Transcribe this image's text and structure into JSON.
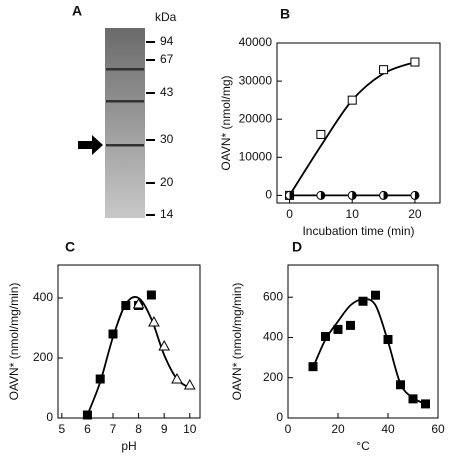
{
  "chart_data": [
    {
      "type": "gel",
      "label": "A",
      "unit": "kDa",
      "markers": [
        94,
        67,
        43,
        30,
        20,
        14
      ]
    },
    {
      "type": "line",
      "label": "B",
      "xlabel": "Incubation time (min)",
      "ylabel": "OAVN* (nmol/mg)",
      "xlim": [
        -2,
        24
      ],
      "xticks": [
        0,
        10,
        20
      ],
      "ylim": [
        -2000,
        40000
      ],
      "yticks": [
        0,
        10000,
        20000,
        30000,
        40000
      ],
      "series": [
        {
          "color": "#000",
          "marker": "none",
          "line": true,
          "x": [
            0,
            5,
            10,
            15,
            20
          ],
          "values": [
            0,
            13000,
            25000,
            32000,
            35000
          ]
        },
        {
          "color": "#000",
          "marker": "square",
          "line": false,
          "x": [
            0,
            5,
            10,
            15,
            20
          ],
          "values": [
            0,
            16000,
            25000,
            33000,
            35000
          ]
        },
        {
          "color": "#000",
          "marker": "circle-half",
          "line": true,
          "x": [
            0,
            5,
            10,
            15,
            20
          ],
          "values": [
            0,
            0,
            0,
            0,
            0
          ]
        }
      ]
    },
    {
      "type": "line",
      "label": "C",
      "xlabel": "pH",
      "ylabel": "OAVN* (nmol/mg/min)",
      "xlim": [
        4.85,
        10.4
      ],
      "xticks": [
        5,
        6,
        7,
        8,
        9,
        10
      ],
      "ylim": [
        0,
        510
      ],
      "yticks": [
        0,
        200,
        400
      ],
      "series": [
        {
          "color": "#000",
          "marker": "none",
          "line": true,
          "x": [
            6,
            6.5,
            7,
            7.5,
            8,
            8.5,
            9,
            9.5,
            10
          ],
          "values": [
            10,
            120,
            270,
            380,
            400,
            330,
            210,
            130,
            100
          ]
        },
        {
          "color": "#000",
          "marker": "square",
          "line": false,
          "x": [
            6,
            6.5,
            7,
            7.5,
            8,
            8.5
          ],
          "values": [
            10,
            130,
            280,
            375,
            375,
            410
          ]
        },
        {
          "color": "#000",
          "marker": "triangle",
          "line": false,
          "x": [
            8,
            8.6,
            9,
            9.5,
            10
          ],
          "values": [
            380,
            320,
            240,
            130,
            110
          ]
        }
      ]
    },
    {
      "type": "line",
      "label": "D",
      "xlabel": "°C",
      "ylabel": "OAVN* (nmol/mg/min)",
      "xlim": [
        0,
        60
      ],
      "xticks": [
        0,
        20,
        40,
        60
      ],
      "ylim": [
        0,
        760
      ],
      "yticks": [
        0,
        200,
        400,
        600
      ],
      "series": [
        {
          "color": "#000",
          "marker": "none",
          "line": true,
          "x": [
            10,
            15,
            20,
            25,
            30,
            35,
            40,
            45,
            50,
            55
          ],
          "values": [
            250,
            390,
            480,
            560,
            590,
            560,
            380,
            170,
            100,
            70
          ]
        },
        {
          "color": "#000",
          "marker": "square",
          "line": false,
          "x": [
            10,
            15,
            20,
            25,
            30,
            35,
            40,
            45,
            50,
            55
          ],
          "values": [
            255,
            405,
            440,
            460,
            580,
            610,
            390,
            165,
            95,
            70
          ]
        }
      ]
    }
  ]
}
